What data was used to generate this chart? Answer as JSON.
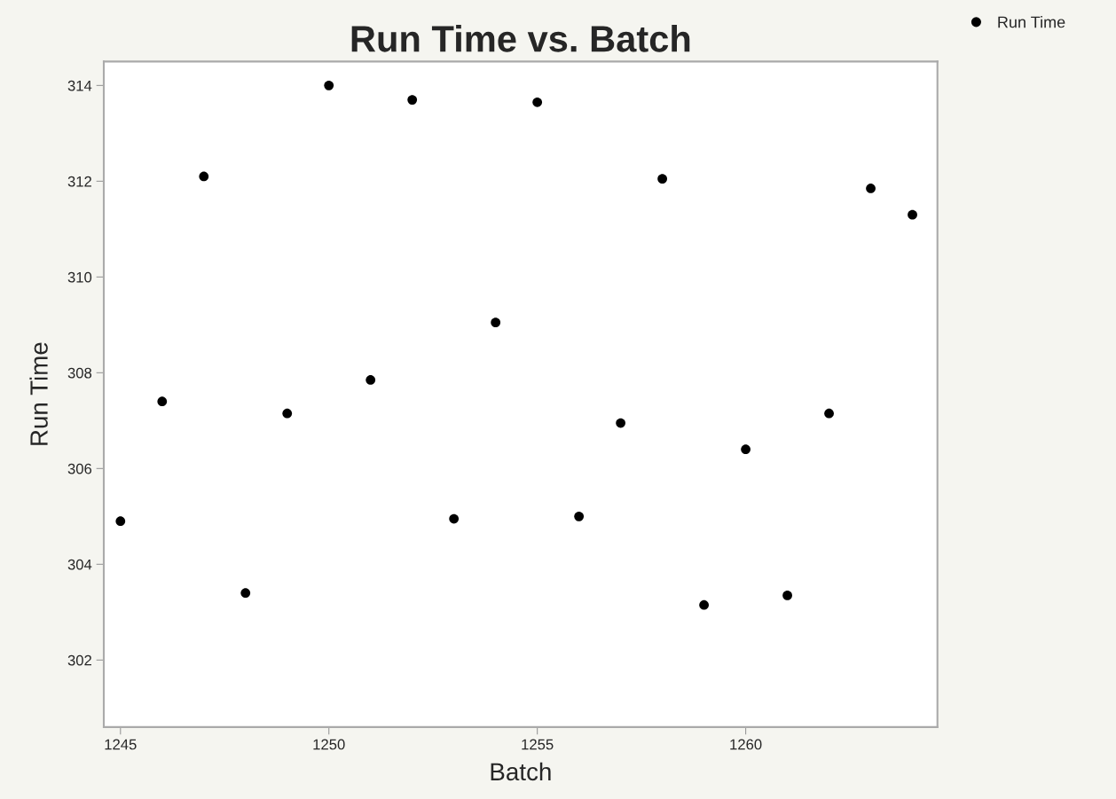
{
  "chart_data": {
    "type": "scatter",
    "title": "Run Time vs. Batch",
    "xlabel": "Batch",
    "ylabel": "Run Time",
    "x": [
      1245,
      1246,
      1247,
      1248,
      1249,
      1250,
      1251,
      1252,
      1253,
      1254,
      1255,
      1256,
      1257,
      1258,
      1259,
      1260,
      1261,
      1262,
      1263,
      1264
    ],
    "series": [
      {
        "name": "Run Time",
        "color": "#000000",
        "values": [
          304.9,
          307.4,
          312.1,
          303.4,
          307.15,
          314.0,
          307.85,
          313.7,
          304.95,
          309.05,
          313.65,
          305.0,
          306.95,
          312.05,
          303.15,
          306.4,
          303.35,
          307.15,
          311.85,
          311.3
        ]
      }
    ],
    "xlim": [
      1244.6,
      1264.6
    ],
    "xticks": [
      1245,
      1250,
      1255,
      1260
    ],
    "ylim": [
      300.6,
      314.5
    ],
    "yticks": [
      302,
      304,
      306,
      308,
      310,
      312,
      314
    ],
    "grid": false,
    "legend": "top right",
    "marker": "circle"
  }
}
